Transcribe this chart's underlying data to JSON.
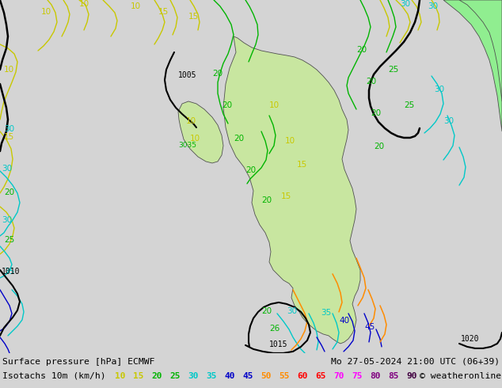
{
  "title_line1": "Surface pressure [hPa] ECMWF",
  "title_line1_right": "Mo 27-05-2024 21:00 UTC (06+39)",
  "title_line2": "Isotachs 10m (km/h)",
  "copyright": "© weatheronline.co.uk",
  "isotach_values": [
    10,
    15,
    20,
    25,
    30,
    35,
    40,
    45,
    50,
    55,
    60,
    65,
    70,
    75,
    80,
    85,
    90
  ],
  "isotach_colors": [
    "#c8c800",
    "#c8c800",
    "#00b400",
    "#00b400",
    "#00c8c8",
    "#00c8c8",
    "#0000c8",
    "#0000c8",
    "#ff8c00",
    "#ff8c00",
    "#ff0000",
    "#ff0000",
    "#ff00ff",
    "#ff00ff",
    "#800080",
    "#800080",
    "#400040"
  ],
  "fig_width": 6.34,
  "fig_height": 4.9,
  "dpi": 100,
  "map_bg": "#d4d4d4",
  "land_green_light": "#c8e6a0",
  "land_green_bright": "#90ee90",
  "sea_color": "#d0d8e0",
  "label_bg": "#ffffff",
  "isobar_color": "#000000",
  "yellow": "#c8c800",
  "green": "#00b400",
  "cyan": "#00c8c8",
  "blue": "#0000c8",
  "orange": "#ff8c00",
  "red": "#ff0000",
  "magenta": "#ff00ff",
  "purple": "#800080",
  "darkpurple": "#400040"
}
